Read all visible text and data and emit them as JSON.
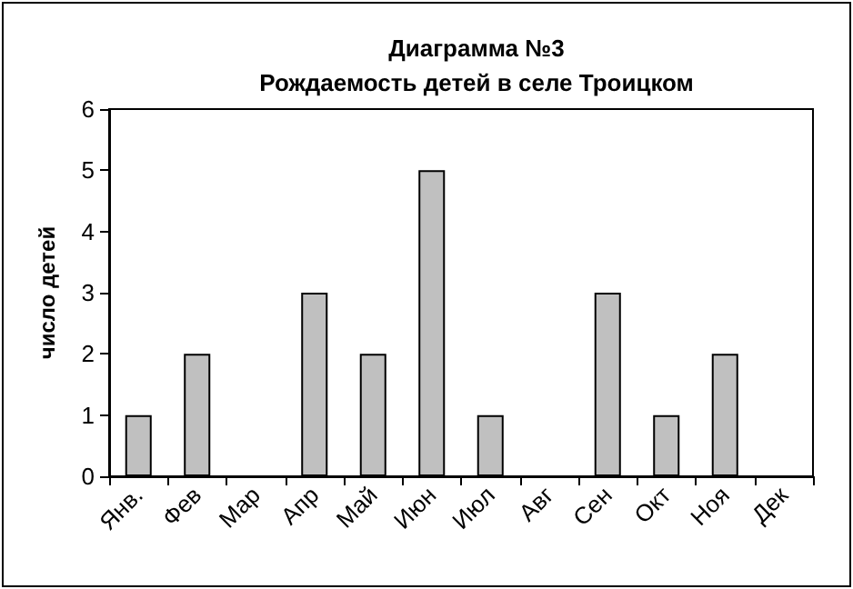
{
  "chart_data": {
    "type": "bar",
    "title": "Диаграмма №3\nРождаемость детей в селе Троицком",
    "ylabel": "число детей",
    "categories": [
      "Янв.",
      "Фев",
      "Мар",
      "Апр",
      "Май",
      "Июн",
      "Июл",
      "Авг",
      "Сен",
      "Окт",
      "Ноя",
      "Дек"
    ],
    "values": [
      1,
      2,
      0,
      3,
      2,
      5,
      1,
      0,
      3,
      1,
      2,
      0
    ],
    "color": "#c0c0c0",
    "ylim": [
      0,
      6
    ],
    "yticks": [
      0,
      1,
      2,
      3,
      4,
      5,
      6
    ],
    "grid": false
  }
}
